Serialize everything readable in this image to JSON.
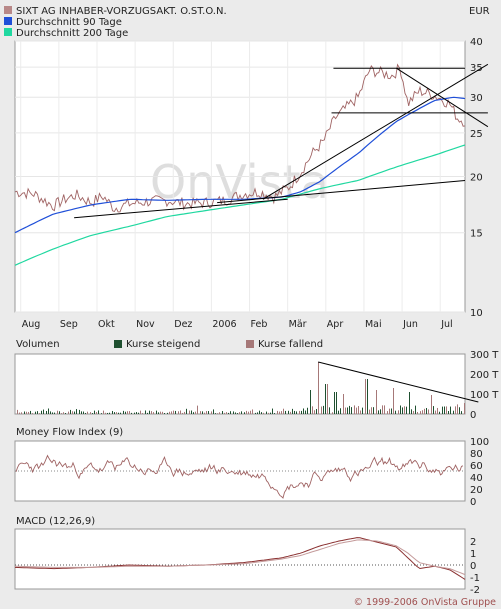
{
  "title": "SIXT AG INHABER-VORZUGSAKT. O.ST.O.N.",
  "currency": "EUR",
  "legend": [
    {
      "label": "SIXT AG INHABER-VORZUGSAKT. O.ST.O.N.",
      "color": "#b88888"
    },
    {
      "label": "Durchschnitt 90 Tage",
      "color": "#1f4fd8"
    },
    {
      "label": "Durchschnitt 200 Tage",
      "color": "#20d8a0"
    }
  ],
  "watermark": "OnVista",
  "footer": "© 1999-2006 OnVista Gruppe",
  "colors": {
    "price": "#a06464",
    "ma90": "#1f4fd8",
    "ma200": "#20d8a0",
    "trendline": "#000000",
    "volume_up": "#1f5030",
    "volume_down": "#a67878",
    "background": "#ebebeb",
    "plot_background": "#ffffff"
  },
  "chart_data": [
    {
      "type": "line",
      "panel": "price",
      "title": "SIXT AG INHABER-VORZUGSAKT. O.ST.O.N.",
      "unit": "EUR",
      "y_scale": "log",
      "ylim": [
        10,
        40
      ],
      "ytick_labels": [
        "10",
        "15",
        "20",
        "25",
        "30",
        "35",
        "40"
      ],
      "ytick_values": [
        10,
        15,
        20,
        25,
        30,
        35,
        40
      ],
      "xtick_labels": [
        "Aug",
        "Sep",
        "Okt",
        "Nov",
        "Dez",
        "2006",
        "Feb",
        "Mär",
        "Apr",
        "Mai",
        "Jun",
        "Jul"
      ],
      "x_month_index": [
        0.15,
        1.15,
        2.15,
        3.15,
        4.15,
        5.15,
        6.15,
        7.15,
        8.15,
        9.15,
        10.15,
        11.15
      ],
      "xlim_months": [
        0,
        11.8
      ],
      "series": [
        {
          "name": "SIXT AG INHABER-VORZUGSAKT. O.ST.O.N.",
          "x_months": [
            0,
            0.5,
            1,
            1.3,
            1.6,
            2,
            2.3,
            2.6,
            3,
            3.5,
            4,
            4.5,
            5,
            5.5,
            6,
            6.4,
            6.8,
            7.2,
            7.5,
            7.8,
            8.1,
            8.4,
            8.7,
            9,
            9.3,
            9.6,
            9.9,
            10.1,
            10.3,
            10.6,
            10.9,
            11.1,
            11.4,
            11.6,
            11.8
          ],
          "values": [
            18.5,
            18.3,
            17.2,
            17.8,
            18.2,
            17.5,
            18.1,
            17.0,
            17.4,
            17.6,
            17.7,
            17.4,
            17.5,
            17.7,
            18.3,
            18.5,
            18.0,
            19.0,
            20.5,
            22.5,
            24.0,
            27.0,
            28.5,
            30.0,
            34.5,
            34.0,
            33.5,
            35.0,
            29.0,
            31.0,
            30.5,
            30.0,
            29.0,
            27.0,
            26.5
          ]
        },
        {
          "name": "Durchschnitt 90 Tage",
          "x_months": [
            0,
            1,
            2,
            3,
            4,
            5,
            6,
            7,
            7.5,
            8,
            8.5,
            9,
            9.5,
            10,
            10.5,
            11,
            11.5,
            11.8
          ],
          "values": [
            15.0,
            16.5,
            17.3,
            17.8,
            17.7,
            17.8,
            17.8,
            18.0,
            18.5,
            19.5,
            21.0,
            22.5,
            24.5,
            26.5,
            28.0,
            29.5,
            30.0,
            29.8
          ]
        },
        {
          "name": "Durchschnitt 200 Tage",
          "x_months": [
            0,
            1,
            2,
            3,
            4,
            5,
            6,
            7,
            8,
            9,
            10,
            11,
            11.8
          ],
          "values": [
            12.7,
            13.8,
            14.8,
            15.5,
            16.3,
            16.8,
            17.3,
            17.8,
            18.8,
            19.6,
            21.0,
            22.3,
            23.5
          ]
        }
      ],
      "trendlines": [
        {
          "x_months": [
            1.55,
            7.15
          ],
          "values": [
            16.2,
            17.8
          ]
        },
        {
          "x_months": [
            5.3,
            11.8
          ],
          "values": [
            17.5,
            19.6
          ]
        },
        {
          "x_months": [
            6.5,
            12.4
          ],
          "values": [
            17.8,
            35.5
          ]
        },
        {
          "x_months": [
            8.35,
            11.8
          ],
          "values": [
            34.8,
            34.8
          ]
        },
        {
          "x_months": [
            8.3,
            12.4
          ],
          "values": [
            27.7,
            27.7
          ]
        },
        {
          "x_months": [
            10.0,
            12.4
          ],
          "values": [
            34.8,
            25.8
          ]
        }
      ]
    },
    {
      "type": "bar",
      "panel": "volume",
      "title": "Volumen",
      "legend": [
        {
          "label": "Kurse steigend",
          "color": "#1f5030"
        },
        {
          "label": "Kurse fallend",
          "color": "#a67878"
        }
      ],
      "ylim": [
        0,
        300
      ],
      "ytick_labels": [
        "300 T",
        "200 T",
        "100 T",
        "0"
      ],
      "ytick_values": [
        300,
        200,
        100,
        0
      ],
      "values_note": "daily volume in thousands, mostly < 30 T before April, spikes up to ~260 T in April",
      "spikes": [
        {
          "x_months": 7.7,
          "value": 120
        },
        {
          "x_months": 7.95,
          "value": 260
        },
        {
          "x_months": 8.15,
          "value": 150
        },
        {
          "x_months": 8.4,
          "value": 110
        },
        {
          "x_months": 8.6,
          "value": 100
        },
        {
          "x_months": 9.2,
          "value": 175
        },
        {
          "x_months": 9.45,
          "value": 120
        },
        {
          "x_months": 9.9,
          "value": 130
        },
        {
          "x_months": 10.3,
          "value": 110
        },
        {
          "x_months": 10.9,
          "value": 95
        }
      ],
      "trendline": {
        "x_months": [
          7.95,
          12.15
        ],
        "values": [
          260,
          60
        ]
      }
    },
    {
      "type": "line",
      "panel": "mfi",
      "title": "Money Flow Index (9)",
      "ylim": [
        0,
        100
      ],
      "ytick_labels": [
        "100",
        "80",
        "60",
        "40",
        "20",
        "0"
      ],
      "ytick_values": [
        100,
        80,
        60,
        40,
        20,
        0
      ],
      "reference_lines": [
        50
      ]
    },
    {
      "type": "line",
      "panel": "macd",
      "title": "MACD (12,26,9)",
      "ylim": [
        -2,
        3
      ],
      "ytick_labels": [
        "2",
        "1",
        "0",
        "-1",
        "-2"
      ],
      "ytick_values": [
        2,
        1,
        0,
        -1,
        -2
      ],
      "series": [
        {
          "name": "MACD",
          "x_months": [
            0,
            1,
            2,
            3,
            4,
            5,
            6,
            6.5,
            7,
            7.5,
            8,
            8.5,
            9,
            9.5,
            10,
            10.3,
            10.6,
            11,
            11.4,
            11.8
          ],
          "values": [
            -0.2,
            -0.3,
            -0.2,
            0.0,
            -0.1,
            0.0,
            0.2,
            0.4,
            0.6,
            1.0,
            1.6,
            2.0,
            2.3,
            1.9,
            1.5,
            0.6,
            -0.3,
            -0.1,
            -0.4,
            -1.2
          ]
        },
        {
          "name": "Signal",
          "x_months": [
            0,
            1,
            2,
            3,
            4,
            5,
            6,
            6.5,
            7,
            7.5,
            8,
            8.5,
            9,
            9.5,
            10,
            10.3,
            10.6,
            11,
            11.4,
            11.8
          ],
          "values": [
            -0.1,
            -0.2,
            -0.2,
            -0.1,
            -0.1,
            0.0,
            0.1,
            0.3,
            0.5,
            0.8,
            1.3,
            1.8,
            2.1,
            2.0,
            1.6,
            1.0,
            0.2,
            -0.1,
            -0.3,
            -0.8
          ]
        }
      ]
    }
  ]
}
